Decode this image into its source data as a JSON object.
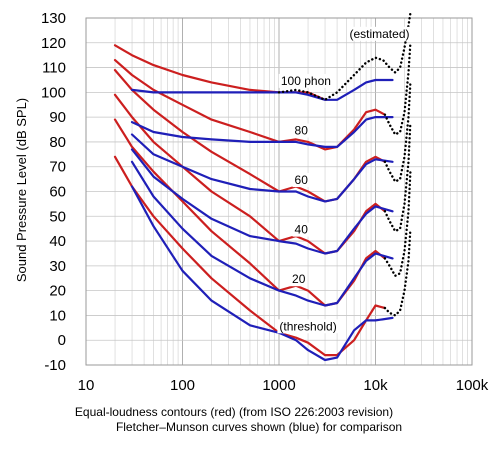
{
  "chart_data": {
    "type": "line",
    "title": "",
    "ylabel": "Sound Pressure Level (dB SPL)",
    "xlabel": "",
    "x_scale": "log",
    "xlim": [
      10,
      100000
    ],
    "ylim": [
      -10,
      130
    ],
    "grid": true,
    "y_ticks": [
      "130",
      "120",
      "110",
      "100",
      "90",
      "80",
      "70",
      "60",
      "50",
      "40",
      "30",
      "20",
      "10",
      "0",
      "-10"
    ],
    "x_ticks": [
      "10",
      "100",
      "1000",
      "10k",
      "100k"
    ],
    "caption_lines": [
      "Equal-loudness contours (red) (from ISO 226:2003 revision)",
      "Fletcher–Munson curves shown (blue) for comparison"
    ],
    "annotations": [
      {
        "text": "(estimated)",
        "x": 11000,
        "y": 122
      },
      {
        "text": "100 phon",
        "x": 1900,
        "y": 103
      },
      {
        "text": "80",
        "x": 1700,
        "y": 83
      },
      {
        "text": "60",
        "x": 1700,
        "y": 63
      },
      {
        "text": "40",
        "x": 1700,
        "y": 43
      },
      {
        "text": "20",
        "x": 1600,
        "y": 23
      },
      {
        "text": "(threshold)",
        "x": 2000,
        "y": 4
      }
    ],
    "series": [
      {
        "color": "#cc1f1f",
        "style": "solid",
        "x": [
          20,
          30,
          50,
          100,
          200,
          500,
          1000,
          1500,
          2000,
          3000,
          4000,
          6000,
          8000,
          10000,
          12500
        ],
        "y": [
          74,
          62,
          50,
          37,
          25,
          12,
          3,
          1,
          -1,
          -6,
          -6,
          0,
          8,
          14,
          13
        ]
      },
      {
        "color": "#cc1f1f",
        "style": "solid",
        "x": [
          20,
          30,
          50,
          100,
          200,
          500,
          1000,
          1500,
          2000,
          3000,
          4000,
          6000,
          8000,
          10000,
          12500
        ],
        "y": [
          89,
          78,
          68,
          56,
          44,
          31,
          20,
          22,
          20,
          14,
          15,
          24,
          33,
          36,
          33
        ]
      },
      {
        "color": "#cc1f1f",
        "style": "solid",
        "x": [
          20,
          30,
          50,
          100,
          200,
          500,
          1000,
          1500,
          2000,
          3000,
          4000,
          6000,
          8000,
          10000,
          12500
        ],
        "y": [
          99,
          90,
          80,
          70,
          60,
          50,
          40,
          42,
          40,
          35,
          36,
          44,
          52,
          55,
          52
        ]
      },
      {
        "color": "#cc1f1f",
        "style": "solid",
        "x": [
          20,
          30,
          50,
          100,
          200,
          500,
          1000,
          1500,
          2000,
          3000,
          4000,
          6000,
          8000,
          10000,
          12500
        ],
        "y": [
          109,
          101,
          93,
          84,
          76,
          67,
          60,
          62,
          60,
          56,
          57,
          65,
          72,
          74,
          72
        ]
      },
      {
        "color": "#cc1f1f",
        "style": "solid",
        "x": [
          20,
          30,
          50,
          100,
          200,
          500,
          1000,
          1500,
          2000,
          3000,
          4000,
          6000,
          8000,
          10000,
          12500
        ],
        "y": [
          113,
          107,
          101,
          95,
          89,
          84,
          80,
          81,
          80,
          77,
          78,
          85,
          92,
          93,
          91
        ]
      },
      {
        "color": "#cc1f1f",
        "style": "solid",
        "x": [
          20,
          30,
          50,
          100,
          200,
          500,
          1000,
          1500,
          2000,
          3000
        ],
        "y": [
          119,
          115,
          111,
          107,
          104,
          101,
          100,
          100,
          100,
          97
        ]
      },
      {
        "color": "#1f1fb8",
        "style": "solid",
        "x": [
          30,
          50,
          100,
          200,
          500,
          1000,
          1500,
          2000,
          3000,
          4000,
          6000,
          8000,
          10000,
          15000
        ],
        "y": [
          62,
          46,
          28,
          16,
          6,
          3,
          0,
          -4,
          -8,
          -7,
          4,
          8,
          8,
          9
        ]
      },
      {
        "color": "#1f1fb8",
        "style": "solid",
        "x": [
          30,
          50,
          100,
          200,
          500,
          1000,
          1500,
          2000,
          3000,
          4000,
          6000,
          8000,
          10000,
          15000
        ],
        "y": [
          72,
          58,
          45,
          34,
          25,
          20,
          18,
          16,
          14,
          15,
          25,
          32,
          35,
          33
        ]
      },
      {
        "color": "#1f1fb8",
        "style": "solid",
        "x": [
          30,
          50,
          100,
          200,
          500,
          1000,
          1500,
          2000,
          3000,
          4000,
          6000,
          8000,
          10000,
          15000
        ],
        "y": [
          77,
          66,
          57,
          49,
          42,
          40,
          39,
          37,
          35,
          36,
          45,
          51,
          54,
          52
        ]
      },
      {
        "color": "#1f1fb8",
        "style": "solid",
        "x": [
          30,
          50,
          100,
          200,
          500,
          1000,
          1500,
          2000,
          3000,
          4000,
          6000,
          8000,
          10000,
          15000
        ],
        "y": [
          83,
          75,
          70,
          65,
          61,
          60,
          60,
          58,
          56,
          57,
          65,
          71,
          73,
          72
        ]
      },
      {
        "color": "#1f1fb8",
        "style": "solid",
        "x": [
          30,
          50,
          100,
          200,
          500,
          1000,
          1500,
          2000,
          3000,
          4000,
          6000,
          8000,
          10000,
          15000
        ],
        "y": [
          88,
          84,
          82,
          81,
          80,
          80,
          80,
          79,
          78,
          78,
          84,
          89,
          90,
          90
        ]
      },
      {
        "color": "#1f1fb8",
        "style": "solid",
        "x": [
          30,
          50,
          100,
          200,
          500,
          1000,
          1500,
          2000,
          3000,
          4000,
          6000,
          8000,
          10000,
          15000
        ],
        "y": [
          101,
          100,
          100,
          100,
          100,
          100,
          100,
          99,
          97,
          97,
          101,
          104,
          105,
          105
        ]
      },
      {
        "color": "#000000",
        "style": "dotted",
        "x": [
          1000,
          1500,
          2000,
          3000,
          4000,
          6000,
          8000,
          10000,
          12000,
          14000,
          16000,
          18000,
          20000,
          22000,
          23000
        ],
        "y": [
          100,
          101,
          100,
          97,
          100,
          107,
          112,
          114,
          113,
          110,
          108,
          110,
          118,
          127,
          132
        ]
      },
      {
        "color": "#000000",
        "style": "dotted",
        "x": [
          12500,
          14000,
          16000,
          18000,
          20000,
          22000,
          23000
        ],
        "y": [
          91,
          87,
          83,
          84,
          92,
          108,
          120
        ]
      },
      {
        "color": "#000000",
        "style": "dotted",
        "x": [
          12500,
          14000,
          16000,
          18000,
          20000,
          22000,
          23000
        ],
        "y": [
          72,
          68,
          64,
          65,
          74,
          90,
          104
        ]
      },
      {
        "color": "#000000",
        "style": "dotted",
        "x": [
          12500,
          14000,
          16000,
          18000,
          20000,
          22000,
          23000
        ],
        "y": [
          52,
          48,
          44,
          45,
          55,
          72,
          88
        ]
      },
      {
        "color": "#000000",
        "style": "dotted",
        "x": [
          12500,
          14000,
          16000,
          18000,
          20000,
          22000,
          23000
        ],
        "y": [
          33,
          30,
          26,
          27,
          36,
          52,
          68
        ]
      },
      {
        "color": "#000000",
        "style": "dotted",
        "x": [
          12500,
          14000,
          16000,
          18000,
          20000,
          22000,
          23000
        ],
        "y": [
          13,
          11,
          10,
          12,
          20,
          32,
          45
        ]
      }
    ]
  }
}
